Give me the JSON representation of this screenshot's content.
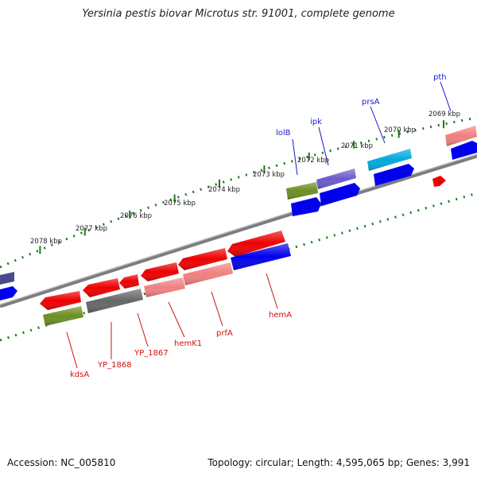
{
  "title": "Yersinia pestis biovar Microtus str. 91001, complete genome",
  "accession": "Accession: NC_005810",
  "topology_summary": "Topology: circular; Length: 4,595,065 bp; Genes: 3,991",
  "scale_ticks": [
    {
      "label": "2069 kbp"
    },
    {
      "label": "2070 kbp"
    },
    {
      "label": "2071 kbp"
    },
    {
      "label": "2072 kbp"
    },
    {
      "label": "2073 kbp"
    },
    {
      "label": "2074 kbp"
    },
    {
      "label": "2075 kbp"
    },
    {
      "label": "2076 kbp"
    },
    {
      "label": "2077 kbp"
    },
    {
      "label": "2078 kbp"
    }
  ],
  "outer_genes": [
    {
      "label": "lolB"
    },
    {
      "label": "ipk"
    },
    {
      "label": "prsA"
    },
    {
      "label": "pth"
    }
  ],
  "inner_genes": [
    {
      "label": "kdsA"
    },
    {
      "label": "YP_1868"
    },
    {
      "label": "YP_1867"
    },
    {
      "label": "hemK1"
    },
    {
      "label": "prfA"
    },
    {
      "label": "hemA"
    }
  ],
  "colors": {
    "backbone": "#8a8a8a",
    "tick_green": "#1f7a1f",
    "outer_label": "#1a1acc",
    "inner_label": "#cc1111",
    "red": "#ee0000",
    "pink": "#f08080",
    "blue": "#0000ee",
    "slate": "#6a5acd",
    "olive": "#6b8e23",
    "cyan": "#00aadd",
    "gray": "#666666"
  }
}
